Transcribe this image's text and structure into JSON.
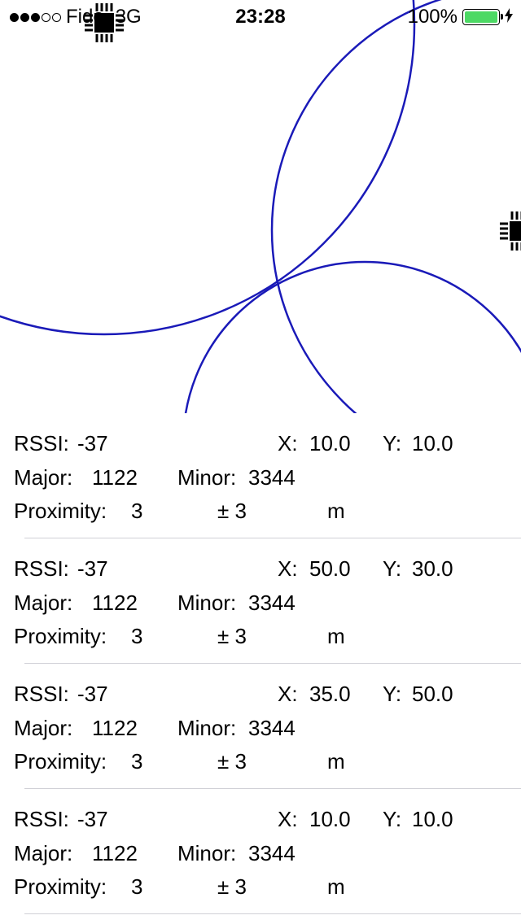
{
  "status_bar": {
    "signal_dots_filled": 3,
    "signal_dots_total": 5,
    "carrier": "Fido",
    "network": "3G",
    "time": "23:28",
    "battery_percent": "100%",
    "battery_level": 1.0,
    "battery_color": "#4cd964",
    "charging_icon": "bolt-icon"
  },
  "map": {
    "circle_color": "#1a1ab8",
    "beacon_icon": "chip-icon"
  },
  "beacons": [
    {
      "rssi_label": "RSSI:",
      "rssi": "-37",
      "x_label": "X:",
      "x": "10.0",
      "y_label": "Y:",
      "y": "10.0",
      "major_label": "Major:",
      "major": "1122",
      "minor_label": "Minor:",
      "minor": "3344",
      "proximity_label": "Proximity:",
      "proximity": "3",
      "accuracy": "± 3",
      "unit": "m"
    },
    {
      "rssi_label": "RSSI:",
      "rssi": "-37",
      "x_label": "X:",
      "x": "50.0",
      "y_label": "Y:",
      "y": "30.0",
      "major_label": "Major:",
      "major": "1122",
      "minor_label": "Minor:",
      "minor": "3344",
      "proximity_label": "Proximity:",
      "proximity": "3",
      "accuracy": "± 3",
      "unit": "m"
    },
    {
      "rssi_label": "RSSI:",
      "rssi": "-37",
      "x_label": "X:",
      "x": "35.0",
      "y_label": "Y:",
      "y": "50.0",
      "major_label": "Major:",
      "major": "1122",
      "minor_label": "Minor:",
      "minor": "3344",
      "proximity_label": "Proximity:",
      "proximity": "3",
      "accuracy": "± 3",
      "unit": "m"
    },
    {
      "rssi_label": "RSSI:",
      "rssi": "-37",
      "x_label": "X:",
      "x": "10.0",
      "y_label": "Y:",
      "y": "10.0",
      "major_label": "Major:",
      "major": "1122",
      "minor_label": "Minor:",
      "minor": "3344",
      "proximity_label": "Proximity:",
      "proximity": "3",
      "accuracy": "± 3",
      "unit": "m"
    }
  ]
}
